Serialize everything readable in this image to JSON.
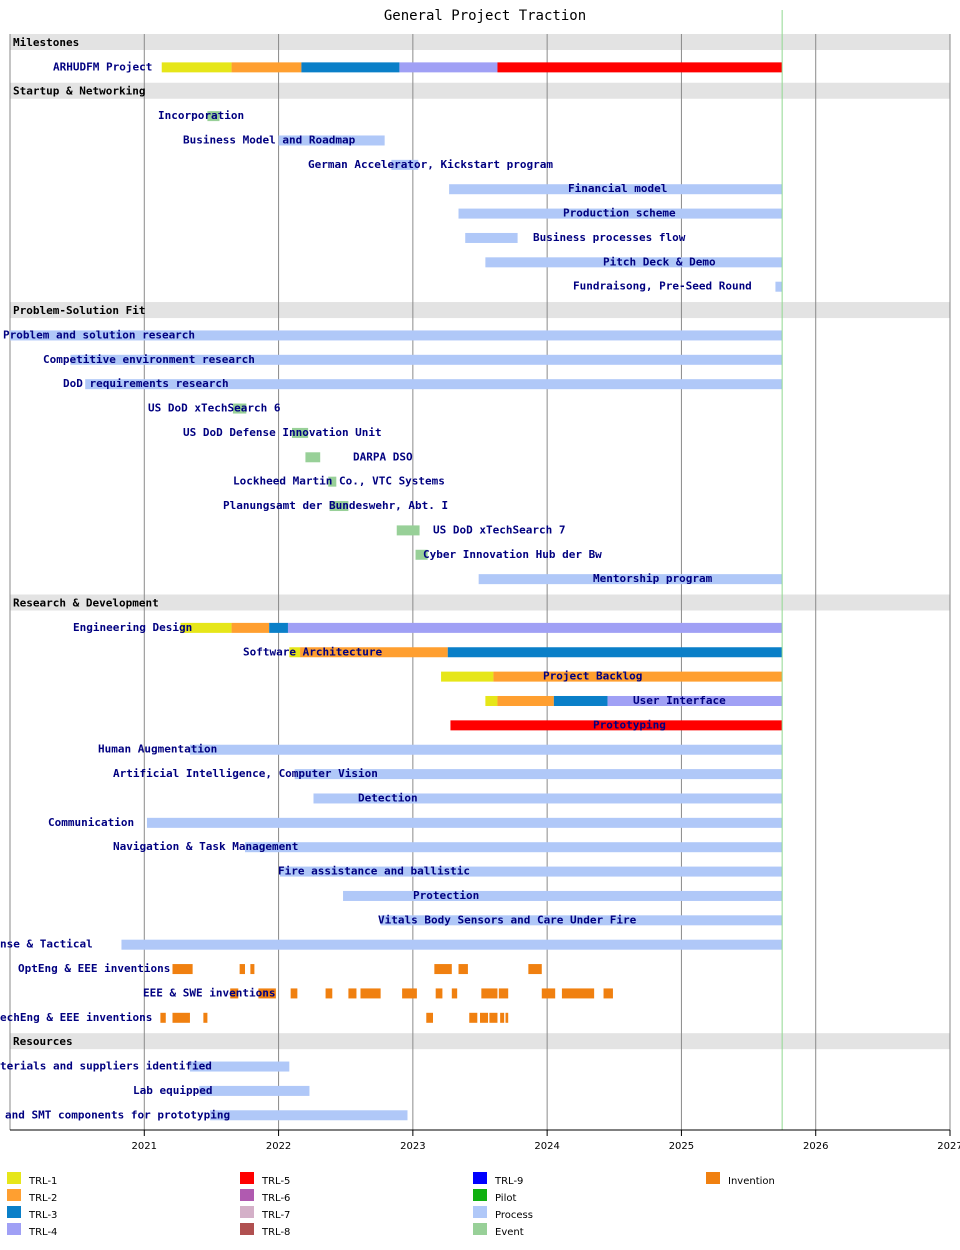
{
  "chart_data": {
    "type": "gantt",
    "title": "General Project Traction",
    "xlim": [
      2020,
      2027
    ],
    "xticks": [
      2021,
      2022,
      2023,
      2024,
      2025,
      2026,
      2027
    ],
    "grid": true,
    "today_line": 2025.75,
    "legend": [
      {
        "name": "TRL-1",
        "color": "#e6e619"
      },
      {
        "name": "TRL-2",
        "color": "#ff9f30"
      },
      {
        "name": "TRL-3",
        "color": "#0a7fc8"
      },
      {
        "name": "TRL-4",
        "color": "#a0a0f5"
      },
      {
        "name": "TRL-5",
        "color": "#ff0000"
      },
      {
        "name": "TRL-6",
        "color": "#b05ab0"
      },
      {
        "name": "TRL-7",
        "color": "#d4b0c8"
      },
      {
        "name": "TRL-8",
        "color": "#b05050"
      },
      {
        "name": "TRL-9",
        "color": "#0000ff"
      },
      {
        "name": "Pilot",
        "color": "#10b010"
      },
      {
        "name": "Process",
        "color": "#b0c8f8"
      },
      {
        "name": "Event",
        "color": "#98d098"
      },
      {
        "name": "Invention",
        "color": "#f08010"
      }
    ],
    "sections": [
      {
        "name": "Milestones",
        "rows": [
          {
            "label": "ARHUDFM Project",
            "bars": [
              {
                "start": 2021.13,
                "end": 2021.65,
                "status": "TRL-1"
              },
              {
                "start": 2021.65,
                "end": 2022.17,
                "status": "TRL-2"
              },
              {
                "start": 2022.17,
                "end": 2022.9,
                "status": "TRL-3"
              },
              {
                "start": 2022.9,
                "end": 2023.63,
                "status": "TRL-4"
              },
              {
                "start": 2023.63,
                "end": 2025.75,
                "status": "TRL-5"
              }
            ]
          }
        ]
      },
      {
        "name": "Startup & Networking",
        "rows": [
          {
            "label": "Incorporation",
            "bars": [
              {
                "start": 2021.47,
                "end": 2021.56,
                "status": "Event"
              }
            ]
          },
          {
            "label": "Business Model and Roadmap",
            "bars": [
              {
                "start": 2022.0,
                "end": 2022.79,
                "status": "Process"
              }
            ]
          },
          {
            "label": "German Accelerator, Kickstart program",
            "bars": [
              {
                "start": 2022.84,
                "end": 2023.04,
                "status": "Process"
              }
            ]
          },
          {
            "label": "Financial model",
            "bars": [
              {
                "start": 2023.27,
                "end": 2025.75,
                "status": "Process"
              }
            ]
          },
          {
            "label": "Production scheme",
            "bars": [
              {
                "start": 2023.34,
                "end": 2025.75,
                "status": "Process"
              }
            ]
          },
          {
            "label": "Business processes flow",
            "bars": [
              {
                "start": 2023.39,
                "end": 2023.78,
                "status": "Process"
              }
            ]
          },
          {
            "label": "Pitch Deck & Demo",
            "bars": [
              {
                "start": 2023.54,
                "end": 2025.75,
                "status": "Process"
              }
            ]
          },
          {
            "label": "Fundraisong, Pre-Seed Round",
            "bars": [
              {
                "start": 2025.7,
                "end": 2025.75,
                "status": "Process"
              }
            ]
          }
        ]
      },
      {
        "name": "Problem-Solution Fit",
        "rows": [
          {
            "label": "Problem and solution research",
            "bars": [
              {
                "start": 2020.0,
                "end": 2025.75,
                "status": "Process"
              }
            ]
          },
          {
            "label": "Competitive environment research",
            "bars": [
              {
                "start": 2020.45,
                "end": 2025.75,
                "status": "Process"
              }
            ]
          },
          {
            "label": "DoD requirements research",
            "bars": [
              {
                "start": 2020.56,
                "end": 2025.75,
                "status": "Process"
              }
            ]
          },
          {
            "label": "US DoD xTechSearch 6",
            "bars": [
              {
                "start": 2021.66,
                "end": 2021.76,
                "status": "Event"
              }
            ]
          },
          {
            "label": "US DoD Defense Innovation Unit",
            "bars": [
              {
                "start": 2022.1,
                "end": 2022.22,
                "status": "Event"
              }
            ]
          },
          {
            "label": "DARPA DSO",
            "bars": [
              {
                "start": 2022.2,
                "end": 2022.31,
                "status": "Event"
              }
            ]
          },
          {
            "label": "Lockheed Martin Co., VTC Systems",
            "bars": [
              {
                "start": 2022.37,
                "end": 2022.43,
                "status": "Event"
              }
            ]
          },
          {
            "label": "Planungsamt der Bundeswehr, Abt. I",
            "bars": [
              {
                "start": 2022.38,
                "end": 2022.52,
                "status": "Event"
              }
            ]
          },
          {
            "label": "US DoD xTechSearch 7",
            "bars": [
              {
                "start": 2022.88,
                "end": 2023.05,
                "status": "Event"
              }
            ]
          },
          {
            "label": "Cyber Innovation Hub der Bw",
            "bars": [
              {
                "start": 2023.02,
                "end": 2023.11,
                "status": "Event"
              }
            ]
          },
          {
            "label": "Mentorship program",
            "bars": [
              {
                "start": 2023.49,
                "end": 2025.75,
                "status": "Process"
              }
            ]
          }
        ]
      },
      {
        "name": "Research & Development",
        "rows": [
          {
            "label": "Engineering Design",
            "bars": [
              {
                "start": 2021.27,
                "end": 2021.65,
                "status": "TRL-1"
              },
              {
                "start": 2021.65,
                "end": 2021.93,
                "status": "TRL-2"
              },
              {
                "start": 2021.93,
                "end": 2022.07,
                "status": "TRL-3"
              },
              {
                "start": 2022.07,
                "end": 2025.75,
                "status": "TRL-4"
              }
            ]
          },
          {
            "label": "Software Architecture",
            "bars": [
              {
                "start": 2022.08,
                "end": 2022.16,
                "status": "TRL-1"
              },
              {
                "start": 2022.16,
                "end": 2023.26,
                "status": "TRL-2"
              },
              {
                "start": 2023.26,
                "end": 2025.75,
                "status": "TRL-3"
              }
            ]
          },
          {
            "label": "Project Backlog",
            "bars": [
              {
                "start": 2023.21,
                "end": 2023.6,
                "status": "TRL-1"
              },
              {
                "start": 2023.6,
                "end": 2025.75,
                "status": "TRL-2"
              }
            ]
          },
          {
            "label": "User Interface",
            "bars": [
              {
                "start": 2023.54,
                "end": 2023.63,
                "status": "TRL-1"
              },
              {
                "start": 2023.63,
                "end": 2024.05,
                "status": "TRL-2"
              },
              {
                "start": 2024.05,
                "end": 2024.45,
                "status": "TRL-3"
              },
              {
                "start": 2024.45,
                "end": 2025.75,
                "status": "TRL-4"
              }
            ]
          },
          {
            "label": "Prototyping",
            "bars": [
              {
                "start": 2023.28,
                "end": 2025.75,
                "status": "TRL-5"
              }
            ]
          },
          {
            "label": "Human Augmentation",
            "bars": [
              {
                "start": 2021.34,
                "end": 2025.75,
                "status": "Process"
              }
            ]
          },
          {
            "label": "Artificial Intelligence, Computer Vision",
            "bars": [
              {
                "start": 2022.12,
                "end": 2025.75,
                "status": "Process"
              }
            ]
          },
          {
            "label": "Detection",
            "bars": [
              {
                "start": 2022.26,
                "end": 2025.75,
                "status": "Process"
              }
            ]
          },
          {
            "label": "Communication",
            "bars": [
              {
                "start": 2021.02,
                "end": 2025.75,
                "status": "Process"
              }
            ]
          },
          {
            "label": "Navigation & Task Management",
            "bars": [
              {
                "start": 2021.75,
                "end": 2025.75,
                "status": "Process"
              }
            ]
          },
          {
            "label": "Fire assistance and ballistic",
            "bars": [
              {
                "start": 2022.01,
                "end": 2025.75,
                "status": "Process"
              }
            ]
          },
          {
            "label": "Protection",
            "bars": [
              {
                "start": 2022.48,
                "end": 2025.75,
                "status": "Process"
              }
            ]
          },
          {
            "label": "Vitals Body Sensors and Care Under Fire",
            "bars": [
              {
                "start": 2022.76,
                "end": 2025.75,
                "status": "Process"
              }
            ]
          },
          {
            "label": "nse & Tactical",
            "bars": [
              {
                "start": 2020.83,
                "end": 2025.75,
                "status": "Process"
              }
            ]
          },
          {
            "label": "OptEng & EEE inventions",
            "bars": [
              {
                "start": 2021.21,
                "end": 2021.36,
                "status": "Invention"
              },
              {
                "start": 2021.71,
                "end": 2021.75,
                "status": "Invention"
              },
              {
                "start": 2021.79,
                "end": 2021.82,
                "status": "Invention"
              },
              {
                "start": 2023.16,
                "end": 2023.29,
                "status": "Invention"
              },
              {
                "start": 2023.34,
                "end": 2023.41,
                "status": "Invention"
              },
              {
                "start": 2023.86,
                "end": 2023.96,
                "status": "Invention"
              }
            ]
          },
          {
            "label": "EEE & SWE inventions",
            "bars": [
              {
                "start": 2021.64,
                "end": 2021.7,
                "status": "Invention"
              },
              {
                "start": 2021.85,
                "end": 2021.98,
                "status": "Invention"
              },
              {
                "start": 2022.09,
                "end": 2022.14,
                "status": "Invention"
              },
              {
                "start": 2022.35,
                "end": 2022.4,
                "status": "Invention"
              },
              {
                "start": 2022.52,
                "end": 2022.58,
                "status": "Invention"
              },
              {
                "start": 2022.61,
                "end": 2022.76,
                "status": "Invention"
              },
              {
                "start": 2022.92,
                "end": 2023.03,
                "status": "Invention"
              },
              {
                "start": 2023.17,
                "end": 2023.22,
                "status": "Invention"
              },
              {
                "start": 2023.29,
                "end": 2023.33,
                "status": "Invention"
              },
              {
                "start": 2023.51,
                "end": 2023.63,
                "status": "Invention"
              },
              {
                "start": 2023.64,
                "end": 2023.71,
                "status": "Invention"
              },
              {
                "start": 2023.96,
                "end": 2024.06,
                "status": "Invention"
              },
              {
                "start": 2024.11,
                "end": 2024.35,
                "status": "Invention"
              },
              {
                "start": 2024.42,
                "end": 2024.49,
                "status": "Invention"
              }
            ]
          },
          {
            "label": "echEng & EEE inventions",
            "bars": [
              {
                "start": 2021.12,
                "end": 2021.16,
                "status": "Invention"
              },
              {
                "start": 2021.21,
                "end": 2021.34,
                "status": "Invention"
              },
              {
                "start": 2021.44,
                "end": 2021.47,
                "status": "Invention"
              },
              {
                "start": 2023.1,
                "end": 2023.15,
                "status": "Invention"
              },
              {
                "start": 2023.42,
                "end": 2023.48,
                "status": "Invention"
              },
              {
                "start": 2023.5,
                "end": 2023.56,
                "status": "Invention"
              },
              {
                "start": 2023.57,
                "end": 2023.63,
                "status": "Invention"
              },
              {
                "start": 2023.65,
                "end": 2023.68,
                "status": "Invention"
              },
              {
                "start": 2023.69,
                "end": 2023.71,
                "status": "Invention"
              }
            ]
          }
        ]
      },
      {
        "name": "Resources",
        "rows": [
          {
            "label": "terials and suppliers identified",
            "bars": [
              {
                "start": 2021.34,
                "end": 2022.08,
                "status": "Process"
              }
            ]
          },
          {
            "label": "Lab equipped",
            "bars": [
              {
                "start": 2021.41,
                "end": 2022.23,
                "status": "Process"
              }
            ]
          },
          {
            "label": "and SMT components for prototyping",
            "bars": [
              {
                "start": 2021.49,
                "end": 2022.96,
                "status": "Process"
              }
            ]
          }
        ]
      }
    ]
  }
}
